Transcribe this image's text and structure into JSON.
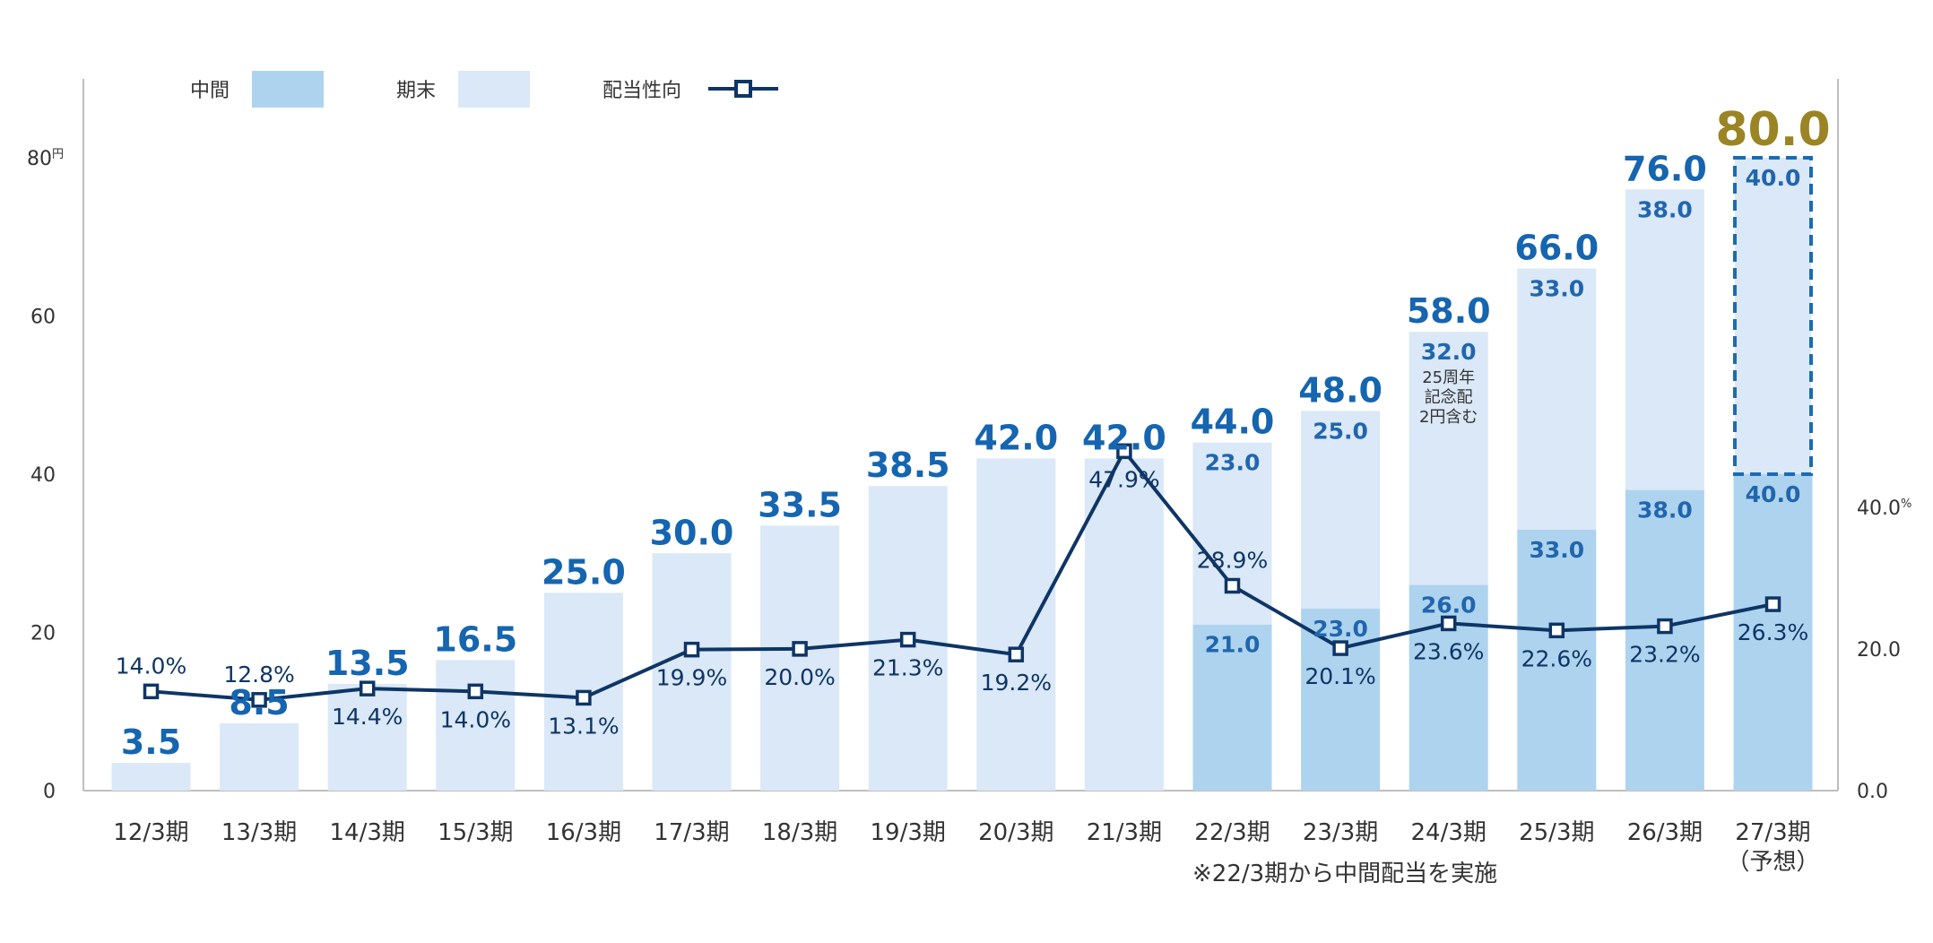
{
  "colors": {
    "interim": "#aed3ef",
    "year_end": "#dae8f7",
    "forecast_border": "#1a6cb3",
    "ratio_line": "#0e3565",
    "total_label": "#1565b0",
    "forecast_total": "#9b8424",
    "segment_label": "#2166ad",
    "axis_text": "#333333",
    "axis_line": "#bfbfbf"
  },
  "legend": [
    {
      "label": "中間",
      "kind": "interim-swatch"
    },
    {
      "label": "期末",
      "kind": "year-end-swatch"
    },
    {
      "label": "配当性向",
      "kind": "ratio-line-marker"
    }
  ],
  "footnote": "※22/3期から中間配当を実施",
  "chart_data": {
    "type": "bar",
    "stacked": true,
    "categories": [
      "12/3期",
      "13/3期",
      "14/3期",
      "15/3期",
      "16/3期",
      "17/3期",
      "18/3期",
      "19/3期",
      "20/3期",
      "21/3期",
      "22/3期",
      "23/3期",
      "24/3期",
      "25/3期",
      "26/3期",
      "27/3期"
    ],
    "category_sublabels": [
      "",
      "",
      "",
      "",
      "",
      "",
      "",
      "",
      "",
      "",
      "",
      "",
      "",
      "",
      "",
      "（予想）"
    ],
    "series": [
      {
        "name": "中間",
        "values": [
          0,
          0,
          0,
          0,
          0,
          0,
          0,
          0,
          0,
          0,
          21.0,
          23.0,
          26.0,
          33.0,
          38.0,
          40.0
        ]
      },
      {
        "name": "期末",
        "values": [
          3.5,
          8.5,
          13.5,
          16.5,
          25.0,
          30.0,
          33.5,
          38.5,
          42.0,
          42.0,
          23.0,
          25.0,
          32.0,
          33.0,
          38.0,
          40.0
        ]
      }
    ],
    "totals": [
      "3.5",
      "8.5",
      "13.5",
      "16.5",
      "25.0",
      "30.0",
      "33.5",
      "38.5",
      "42.0",
      "42.0",
      "44.0",
      "48.0",
      "58.0",
      "66.0",
      "76.0",
      "80.0"
    ],
    "interim_labels": [
      "",
      "",
      "",
      "",
      "",
      "",
      "",
      "",
      "",
      "",
      "21.0",
      "23.0",
      "26.0",
      "33.0",
      "38.0",
      "40.0"
    ],
    "year_end_labels": [
      "",
      "",
      "",
      "",
      "",
      "",
      "",
      "",
      "",
      "",
      "23.0",
      "25.0",
      "32.0",
      "33.0",
      "38.0",
      "40.0"
    ],
    "forecast_index": 15,
    "special_note": {
      "index": 12,
      "lines": [
        "25周年",
        "記念配",
        "2円含む"
      ]
    },
    "line": {
      "name": "配当性向",
      "values": [
        14.0,
        12.8,
        14.4,
        14.0,
        13.1,
        19.9,
        20.0,
        21.3,
        19.2,
        47.9,
        28.9,
        20.1,
        23.6,
        22.6,
        23.2,
        26.3
      ],
      "labels": [
        "14.0%",
        "12.8%",
        "14.4%",
        "14.0%",
        "13.1%",
        "19.9%",
        "20.0%",
        "21.3%",
        "19.2%",
        "47.9%",
        "28.9%",
        "20.1%",
        "23.6%",
        "22.6%",
        "23.2%",
        "26.3%"
      ],
      "label_pos": [
        "above",
        "above",
        "below",
        "below",
        "below",
        "below",
        "below",
        "below",
        "below",
        "below",
        "above",
        "below",
        "below",
        "below",
        "below",
        "below"
      ]
    },
    "y_left": {
      "min": 0,
      "max": 80,
      "ticks": [
        "0",
        "20",
        "40",
        "60",
        "80"
      ],
      "unit": "円"
    },
    "y_right": {
      "min": 0,
      "max": 89.3,
      "ticks": [
        "0.0",
        "20.0",
        "40.0"
      ],
      "unit": "%"
    }
  }
}
